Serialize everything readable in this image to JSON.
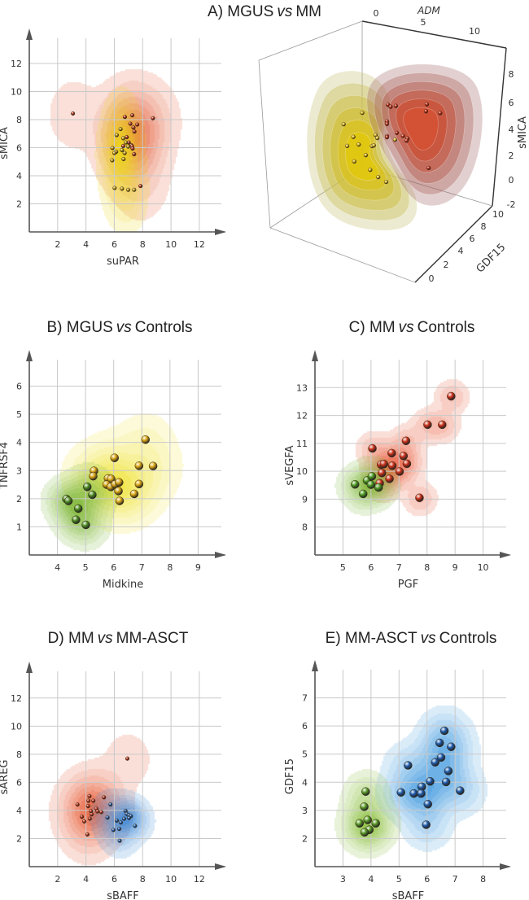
{
  "chart_data": [
    {
      "type": "scatter",
      "title_parts": [
        "A) MGUS",
        "vs",
        "MM"
      ],
      "xlabel": "suPAR",
      "ylabel": "sMICA",
      "xticks": [
        2,
        4,
        6,
        8,
        10,
        12
      ],
      "yticks": [
        2,
        4,
        6,
        8,
        10,
        12
      ],
      "xlim": [
        0,
        13.9
      ],
      "ylim": [
        0,
        13.8
      ],
      "grid": true,
      "density_contours": true,
      "series": [
        {
          "color": "#e4623f",
          "point_color": "#b8301a",
          "points": [
            [
              3.08,
              8.44
            ],
            [
              6.75,
              8.19
            ],
            [
              7.27,
              8.31
            ],
            [
              8.73,
              8.1
            ],
            [
              7.13,
              7.71
            ],
            [
              7.62,
              7.65
            ],
            [
              7.35,
              7.44
            ],
            [
              7.42,
              7.15
            ],
            [
              6.88,
              6.75
            ],
            [
              7.02,
              6.37
            ],
            [
              7.21,
              6.17
            ],
            [
              7.25,
              6.1
            ],
            [
              6.63,
              6.12
            ],
            [
              7.29,
              5.94
            ],
            [
              7.4,
              5.54
            ],
            [
              7.85,
              3.27
            ]
          ]
        },
        {
          "color": "#ecd81a",
          "point_color": "#c9a418",
          "points": [
            [
              6.44,
              7.33
            ],
            [
              6.17,
              6.9
            ],
            [
              6.63,
              6.67
            ],
            [
              6.81,
              6.37
            ],
            [
              6.98,
              6.08
            ],
            [
              5.87,
              5.98
            ],
            [
              6.54,
              5.83
            ],
            [
              6.13,
              5.71
            ],
            [
              6.0,
              5.62
            ],
            [
              6.73,
              5.62
            ],
            [
              5.85,
              5.1
            ],
            [
              6.65,
              5.19
            ],
            [
              6.02,
              3.13
            ],
            [
              6.54,
              3.08
            ],
            [
              6.98,
              3.0
            ],
            [
              7.4,
              3.0
            ]
          ]
        }
      ]
    },
    {
      "type": "scatter3d",
      "axes": {
        "x": {
          "label": "ADM",
          "ticks": [
            0,
            5,
            10
          ]
        },
        "y": {
          "label": "GDF15",
          "ticks": [
            0,
            2,
            4,
            6,
            8,
            10
          ]
        },
        "z": {
          "label": "sMICA",
          "ticks": [
            -2,
            0,
            2,
            4,
            6,
            8
          ]
        }
      },
      "density_contours": true,
      "series": [
        {
          "color": "#c8442b",
          "point_color": "#c22c12",
          "points": [
            [
              6.6,
              5,
              7.4
            ],
            [
              6.9,
              5,
              7.3
            ],
            [
              7.5,
              5,
              7.5
            ],
            [
              11.0,
              5,
              8.4
            ],
            [
              10.9,
              5,
              7.8
            ],
            [
              12.5,
              5,
              8.0
            ],
            [
              6.5,
              5,
              6.0
            ],
            [
              6.5,
              5,
              5.8
            ],
            [
              7.6,
              5,
              5.3
            ],
            [
              8.3,
              5,
              5.2
            ],
            [
              8.8,
              5,
              5.1
            ],
            [
              8.7,
              5,
              4.9
            ],
            [
              6.5,
              5,
              4.8
            ],
            [
              6.5,
              5,
              4.7
            ],
            [
              11.2,
              5,
              3.2
            ]
          ]
        },
        {
          "color": "#d8c310",
          "point_color": "#e0c020",
          "points": [
            [
              3.7,
              5,
              6.1
            ],
            [
              1.6,
              5,
              4.7
            ],
            [
              2.7,
              5,
              3.9
            ],
            [
              5.2,
              5,
              4.6
            ],
            [
              5.4,
              5,
              4.4
            ],
            [
              2.0,
              5,
              3.0
            ],
            [
              3.3,
              5,
              3.4
            ],
            [
              4.8,
              5,
              3.6
            ],
            [
              5.0,
              5,
              3.7
            ],
            [
              4.1,
              5,
              2.7
            ],
            [
              2.8,
              5,
              1.9
            ],
            [
              4.6,
              5,
              1.6
            ],
            [
              5.5,
              5,
              1.2
            ],
            [
              6.4,
              5,
              1.0
            ],
            [
              7.4,
              5,
              4.7
            ]
          ]
        }
      ]
    },
    {
      "type": "scatter",
      "title_parts": [
        "B) MGUS",
        "vs",
        "Controls"
      ],
      "xlabel": "Midkine",
      "ylabel": "TNFRSF4",
      "xticks": [
        4,
        5,
        6,
        7,
        8,
        9
      ],
      "yticks": [
        1,
        2,
        3,
        4,
        5,
        6
      ],
      "xlim": [
        3,
        10
      ],
      "ylim": [
        0,
        6.94
      ],
      "grid": true,
      "density_contours": true,
      "series": [
        {
          "color": "#f0e43a",
          "point_color": "#d9a514",
          "points": [
            [
              7.13,
              4.1
            ],
            [
              6.03,
              3.45
            ],
            [
              5.3,
              2.99
            ],
            [
              5.27,
              2.8
            ],
            [
              5.8,
              2.72
            ],
            [
              5.91,
              2.7
            ],
            [
              5.75,
              2.5
            ],
            [
              5.9,
              2.42
            ],
            [
              6.05,
              2.51
            ],
            [
              6.19,
              2.58
            ],
            [
              6.17,
              2.27
            ],
            [
              6.21,
              1.92
            ],
            [
              6.73,
              2.17
            ],
            [
              6.9,
              2.52
            ],
            [
              6.9,
              3.17
            ],
            [
              7.4,
              3.16
            ]
          ]
        },
        {
          "color": "#7fb83a",
          "point_color": "#4d8a22",
          "points": [
            [
              4.32,
              1.99
            ],
            [
              4.39,
              1.92
            ],
            [
              5.06,
              2.42
            ],
            [
              5.24,
              2.14
            ],
            [
              4.74,
              1.65
            ],
            [
              4.66,
              1.25
            ],
            [
              5.01,
              1.07
            ]
          ]
        }
      ]
    },
    {
      "type": "scatter",
      "title_parts": [
        "C) MM",
        "vs",
        "Controls"
      ],
      "xlabel": "PGF",
      "ylabel": "sVEGFA",
      "xticks": [
        5,
        6,
        7,
        8,
        9,
        10
      ],
      "yticks": [
        8,
        9,
        10,
        11,
        12,
        13
      ],
      "xlim": [
        4,
        11
      ],
      "ylim": [
        7,
        14
      ],
      "grid": true,
      "density_contours": true,
      "series": [
        {
          "color": "#e85a3a",
          "point_color": "#c8301a",
          "points": [
            [
              8.86,
              12.69
            ],
            [
              8.02,
              11.67
            ],
            [
              8.54,
              11.67
            ],
            [
              7.25,
              11.09
            ],
            [
              6.05,
              10.82
            ],
            [
              6.74,
              10.65
            ],
            [
              7.16,
              10.55
            ],
            [
              7.28,
              10.27
            ],
            [
              6.36,
              10.24
            ],
            [
              6.46,
              10.26
            ],
            [
              6.76,
              10.2
            ],
            [
              7.02,
              9.99
            ],
            [
              6.39,
              9.94
            ],
            [
              6.66,
              9.73
            ],
            [
              6.31,
              9.57
            ],
            [
              7.73,
              9.05
            ]
          ]
        },
        {
          "color": "#7fb83a",
          "point_color": "#4d9a22",
          "points": [
            [
              5.43,
              9.53
            ],
            [
              5.86,
              9.67
            ],
            [
              6.03,
              9.82
            ],
            [
              6.0,
              9.52
            ],
            [
              5.72,
              9.19
            ],
            [
              6.27,
              9.42
            ]
          ]
        }
      ]
    },
    {
      "type": "scatter",
      "title_parts": [
        "D) MM",
        "vs",
        "MM-ASCT"
      ],
      "xlabel": "sBAFF",
      "ylabel": "sAREG",
      "xticks": [
        2,
        4,
        6,
        8,
        10,
        12
      ],
      "yticks": [
        2,
        4,
        6,
        8,
        10,
        12
      ],
      "xlim": [
        0,
        13.9
      ],
      "ylim": [
        0,
        13.9
      ],
      "grid": true,
      "density_contours": true,
      "series": [
        {
          "color": "#e8603c",
          "point_color": "#b8301a",
          "points": [
            [
              6.92,
              7.69
            ],
            [
              4.25,
              5.02
            ],
            [
              5.27,
              4.93
            ],
            [
              4.17,
              4.69
            ],
            [
              4.52,
              4.69
            ],
            [
              3.4,
              4.42
            ],
            [
              4.15,
              4.31
            ],
            [
              4.73,
              4.12
            ],
            [
              4.35,
              3.95
            ],
            [
              4.81,
              3.93
            ],
            [
              5.08,
              3.88
            ],
            [
              4.4,
              3.72
            ],
            [
              3.71,
              3.55
            ],
            [
              4.27,
              3.41
            ],
            [
              3.88,
              3.22
            ],
            [
              4.1,
              2.29
            ]
          ]
        },
        {
          "color": "#3f8ad6",
          "point_color": "#1f5aa8",
          "points": [
            [
              5.73,
              4.42
            ],
            [
              5.52,
              3.49
            ],
            [
              6.79,
              3.97
            ],
            [
              6.88,
              3.75
            ],
            [
              7.02,
              3.66
            ],
            [
              7.17,
              3.6
            ],
            [
              7.04,
              3.46
            ],
            [
              6.17,
              3.28
            ],
            [
              6.46,
              3.14
            ],
            [
              6.69,
              3.41
            ],
            [
              7.46,
              2.9
            ],
            [
              6.35,
              2.69
            ],
            [
              5.94,
              2.61
            ],
            [
              6.38,
              1.84
            ]
          ]
        }
      ]
    },
    {
      "type": "scatter",
      "title_parts": [
        "E) MM-ASCT",
        "vs",
        "Controls"
      ],
      "xlabel": "sBAFF",
      "ylabel": "GDF15",
      "xticks": [
        3,
        4,
        5,
        6,
        7,
        8
      ],
      "yticks": [
        2,
        3,
        4,
        5,
        6,
        7
      ],
      "xlim": [
        2,
        9
      ],
      "ylim": [
        1,
        8
      ],
      "grid": true,
      "density_contours": true,
      "series": [
        {
          "color": "#4a9ee0",
          "point_color": "#1f5aa8",
          "points": [
            [
              6.62,
              5.83
            ],
            [
              6.45,
              5.4
            ],
            [
              6.86,
              5.26
            ],
            [
              6.5,
              4.88
            ],
            [
              6.29,
              4.71
            ],
            [
              5.32,
              4.6
            ],
            [
              6.76,
              4.4
            ],
            [
              6.11,
              4.03
            ],
            [
              6.68,
              4.01
            ],
            [
              5.81,
              3.84
            ],
            [
              7.18,
              3.7
            ],
            [
              5.07,
              3.64
            ],
            [
              5.53,
              3.6
            ],
            [
              5.79,
              3.6
            ],
            [
              6.03,
              3.22
            ],
            [
              5.97,
              2.49
            ]
          ]
        },
        {
          "color": "#8cc040",
          "point_color": "#5a9a28",
          "points": [
            [
              3.81,
              3.67
            ],
            [
              3.76,
              3.13
            ],
            [
              3.88,
              2.66
            ],
            [
              3.59,
              2.54
            ],
            [
              4.17,
              2.54
            ],
            [
              3.94,
              2.31
            ],
            [
              3.77,
              2.22
            ]
          ]
        }
      ]
    }
  ]
}
